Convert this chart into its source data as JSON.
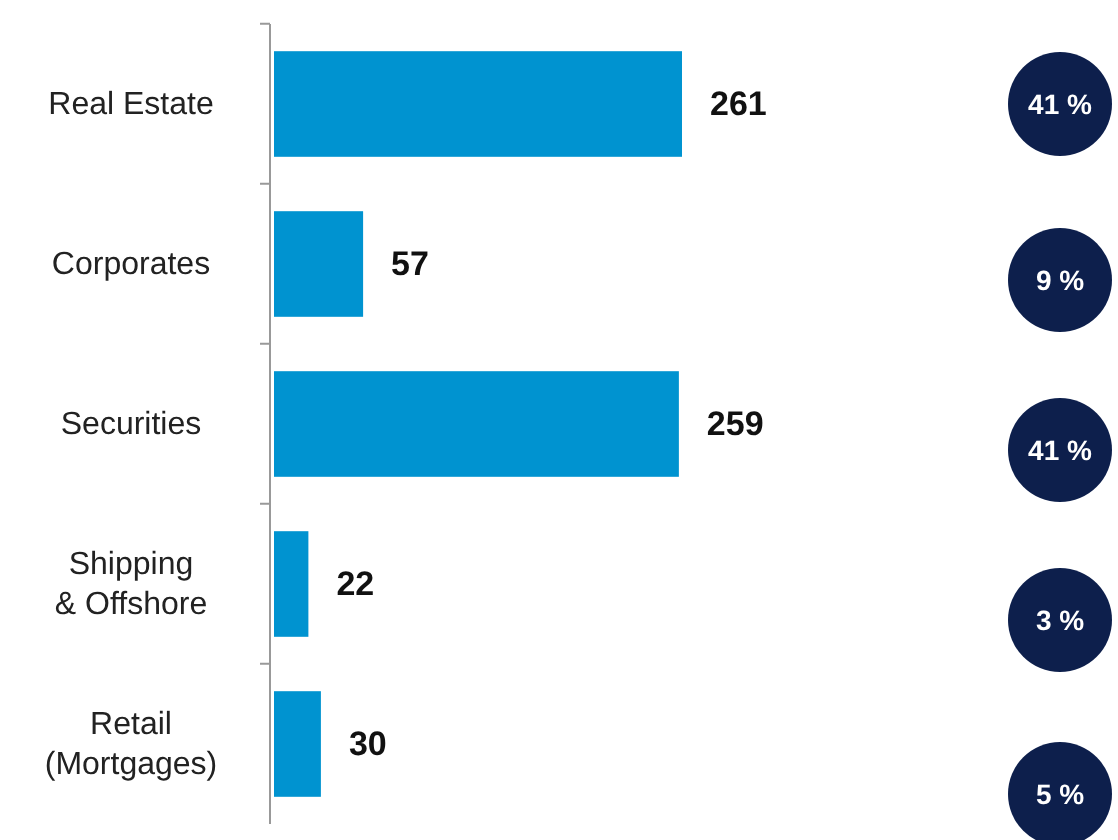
{
  "chart_data": {
    "type": "bar",
    "orientation": "horizontal",
    "categories": [
      "Real Estate",
      "Corporates",
      "Securities",
      "Shipping\n& Offshore",
      "Retail\n(Mortgages)"
    ],
    "values": [
      261,
      57,
      259,
      22,
      30
    ],
    "color": "#0093d0",
    "data_labels": true,
    "annotations": [
      "41 %",
      "9 %",
      "41 %",
      "3 %",
      "5 %"
    ]
  }
}
